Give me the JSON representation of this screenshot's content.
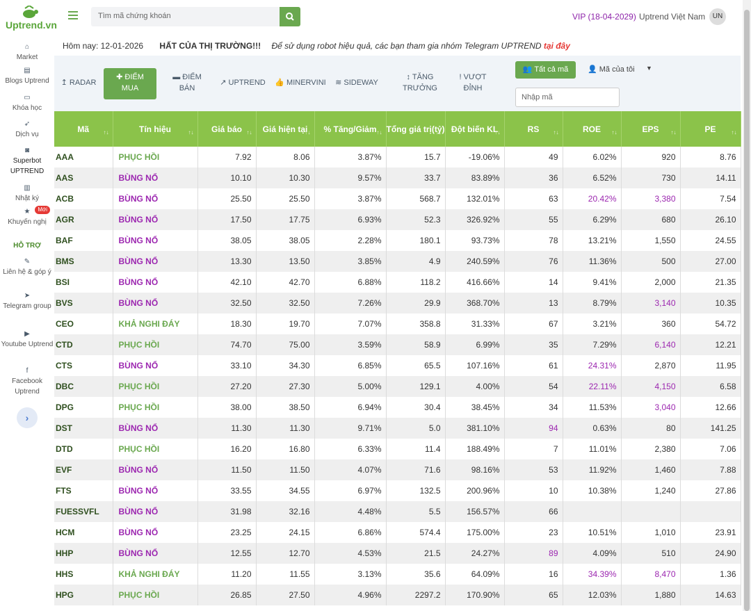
{
  "brand": {
    "logo_text": "Uptrend.vn"
  },
  "sidebar": {
    "items": [
      {
        "label": "Market",
        "icon": "home-icon"
      },
      {
        "label": "Blogs Uptrend",
        "icon": "document-icon"
      },
      {
        "label": "Khóa học",
        "icon": "laptop-icon"
      },
      {
        "label": "Dịch vụ",
        "icon": "rocket-icon"
      },
      {
        "label": "Superbot UPTREND",
        "icon": "robot-icon"
      },
      {
        "label": "Nhật ký",
        "icon": "book-icon"
      },
      {
        "label": "Khuyến nghị",
        "icon": "star-icon",
        "badge": "Mới"
      },
      {
        "label": "Liên hệ & góp ý",
        "icon": "edit-icon"
      },
      {
        "label": "Telegram group",
        "icon": "telegram-icon"
      },
      {
        "label": "Youtube Uptrend",
        "icon": "youtube-icon"
      },
      {
        "label": "Facebook Uptrend",
        "icon": "facebook-icon"
      }
    ],
    "support_label": "HỖ TRỢ"
  },
  "header": {
    "search_placeholder": "Tìm mã chứng khoán",
    "vip": "VIP (18-04-2029)",
    "user": "Uptrend Việt Nam",
    "avatar": "UN"
  },
  "ticker": {
    "date": "Hôm nay: 12-01-2026",
    "headline": "HẤT CỦA THỊ TRƯỜNG!!!",
    "note": "Để sử dụng robot hiệu quả, các bạn tham gia nhóm Telegram UPTREND",
    "link": "tại đây"
  },
  "tabs": [
    {
      "label1": "RADAR",
      "label2": "",
      "icon": "↥"
    },
    {
      "label1": "ĐIỂM",
      "label2": "MUA",
      "icon": "✚"
    },
    {
      "label1": "ĐIỂM",
      "label2": "BÁN",
      "icon": "▬"
    },
    {
      "label1": "UPTREND",
      "label2": "",
      "icon": "↗"
    },
    {
      "label1": "MINERVINI",
      "label2": "",
      "icon": "👍"
    },
    {
      "label1": "SIDEWAY",
      "label2": "",
      "icon": "≋"
    },
    {
      "label1": "TĂNG",
      "label2": "TRƯỞNG",
      "icon": "↕"
    },
    {
      "label1": "VƯỢT",
      "label2": "ĐỈNH",
      "icon": "!"
    }
  ],
  "filters": {
    "all_codes": "Tất cả mã",
    "my_codes": "Mã của tôi",
    "code_input_placeholder": "Nhập mã"
  },
  "table": {
    "headers": [
      "Mã",
      "Tín hiệu",
      "Giá báo",
      "Giá hiện tại",
      "% Tăng/Giảm",
      "Tổng giá trị(tỷ)",
      "Đột biến KL",
      "RS",
      "ROE",
      "EPS",
      "PE"
    ],
    "rows": [
      [
        "AAA",
        "PHỤC HỒI",
        "7.92",
        "8.06",
        "3.87%",
        "15.7",
        "-19.06%",
        "49",
        "6.02%",
        "920",
        "8.76"
      ],
      [
        "AAS",
        "BÙNG NỔ",
        "10.10",
        "10.30",
        "9.57%",
        "33.7",
        "83.89%",
        "36",
        "6.52%",
        "730",
        "14.11"
      ],
      [
        "ACB",
        "BÙNG NỔ",
        "25.50",
        "25.50",
        "3.87%",
        "568.7",
        "132.01%",
        "63",
        "20.42%",
        "3,380",
        "7.54"
      ],
      [
        "AGR",
        "BÙNG NỔ",
        "17.50",
        "17.75",
        "6.93%",
        "52.3",
        "326.92%",
        "55",
        "6.29%",
        "680",
        "26.10"
      ],
      [
        "BAF",
        "BÙNG NỔ",
        "38.05",
        "38.05",
        "2.28%",
        "180.1",
        "93.73%",
        "78",
        "13.21%",
        "1,550",
        "24.55"
      ],
      [
        "BMS",
        "BÙNG NỔ",
        "13.30",
        "13.50",
        "3.85%",
        "4.9",
        "240.59%",
        "76",
        "11.36%",
        "500",
        "27.00"
      ],
      [
        "BSI",
        "BÙNG NỔ",
        "42.10",
        "42.70",
        "6.88%",
        "118.2",
        "416.66%",
        "14",
        "9.41%",
        "2,000",
        "21.35"
      ],
      [
        "BVS",
        "BÙNG NỔ",
        "32.50",
        "32.50",
        "7.26%",
        "29.9",
        "368.70%",
        "13",
        "8.79%",
        "3,140",
        "10.35"
      ],
      [
        "CEO",
        "KHẢ NGHI ĐÁY",
        "18.30",
        "19.70",
        "7.07%",
        "358.8",
        "31.33%",
        "67",
        "3.21%",
        "360",
        "54.72"
      ],
      [
        "CTD",
        "PHỤC HỒI",
        "74.70",
        "75.00",
        "3.59%",
        "58.9",
        "6.99%",
        "35",
        "7.29%",
        "6,140",
        "12.21"
      ],
      [
        "CTS",
        "BÙNG NỔ",
        "33.10",
        "34.30",
        "6.85%",
        "65.5",
        "107.16%",
        "61",
        "24.31%",
        "2,870",
        "11.95"
      ],
      [
        "DBC",
        "PHỤC HỒI",
        "27.20",
        "27.30",
        "5.00%",
        "129.1",
        "4.00%",
        "54",
        "22.11%",
        "4,150",
        "6.58"
      ],
      [
        "DPG",
        "PHỤC HỒI",
        "38.00",
        "38.50",
        "6.94%",
        "30.4",
        "38.45%",
        "34",
        "11.53%",
        "3,040",
        "12.66"
      ],
      [
        "DST",
        "BÙNG NỔ",
        "11.30",
        "11.30",
        "9.71%",
        "5.0",
        "381.10%",
        "94",
        "0.63%",
        "80",
        "141.25"
      ],
      [
        "DTD",
        "PHỤC HỒI",
        "16.20",
        "16.80",
        "6.33%",
        "11.4",
        "188.49%",
        "7",
        "11.01%",
        "2,380",
        "7.06"
      ],
      [
        "EVF",
        "BÙNG NỔ",
        "11.50",
        "11.50",
        "4.07%",
        "71.6",
        "98.16%",
        "53",
        "11.92%",
        "1,460",
        "7.88"
      ],
      [
        "FTS",
        "BÙNG NỔ",
        "33.55",
        "34.55",
        "6.97%",
        "132.5",
        "200.96%",
        "10",
        "10.38%",
        "1,240",
        "27.86"
      ],
      [
        "FUESSVFL",
        "BÙNG NỔ",
        "31.98",
        "32.16",
        "4.48%",
        "5.5",
        "156.57%",
        "66",
        "",
        "",
        ""
      ],
      [
        "HCM",
        "BÙNG NỔ",
        "23.25",
        "24.15",
        "6.86%",
        "574.4",
        "175.00%",
        "23",
        "10.51%",
        "1,010",
        "23.91"
      ],
      [
        "HHP",
        "BÙNG NỔ",
        "12.55",
        "12.70",
        "4.53%",
        "21.5",
        "24.27%",
        "89",
        "4.09%",
        "510",
        "24.90"
      ],
      [
        "HHS",
        "KHẢ NGHI ĐÁY",
        "11.20",
        "11.55",
        "3.13%",
        "35.6",
        "64.09%",
        "16",
        "34.39%",
        "8,470",
        "1.36"
      ],
      [
        "HPG",
        "PHỤC HỒI",
        "26.85",
        "27.50",
        "4.96%",
        "2297.2",
        "170.90%",
        "65",
        "12.03%",
        "1,880",
        "14.63"
      ]
    ]
  }
}
